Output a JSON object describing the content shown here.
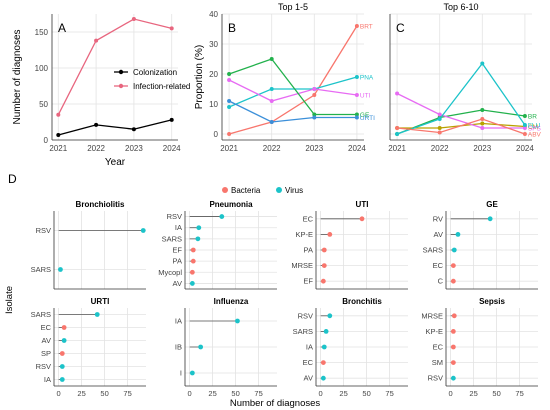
{
  "chart_data": [
    {
      "id": "A",
      "type": "line",
      "panel_label": "A",
      "title": "",
      "xlabel": "Year",
      "ylabel": "Number of diagnoses",
      "x": [
        2021,
        2022,
        2023,
        2024
      ],
      "ylim": [
        0,
        175
      ],
      "yticks": [
        0,
        50,
        100,
        150
      ],
      "grid": true,
      "legend_position": "center-right",
      "series": [
        {
          "name": "Colonization",
          "color": "#000000",
          "values": [
            7,
            21,
            15,
            28
          ]
        },
        {
          "name": "Infection-related",
          "color": "#e8667f",
          "values": [
            35,
            138,
            168,
            155
          ]
        }
      ]
    },
    {
      "id": "B",
      "type": "line",
      "panel_label": "B",
      "title": "Top 1-5",
      "xlabel": "",
      "ylabel": "Proportion (%)",
      "x": [
        2021,
        2022,
        2023,
        2024
      ],
      "ylim": [
        -2,
        40
      ],
      "yticks": [
        0,
        10,
        20,
        30,
        40
      ],
      "grid": true,
      "series": [
        {
          "name": "BRT",
          "color": "#f8766d",
          "values": [
            0,
            4,
            13,
            36
          ]
        },
        {
          "name": "PNA",
          "color": "#1cc3c9",
          "values": [
            9,
            15,
            15,
            19
          ]
        },
        {
          "name": "UTI",
          "color": "#e76bf3",
          "values": [
            18,
            11,
            15,
            13
          ]
        },
        {
          "name": "GE",
          "color": "#22b14c",
          "values": [
            20,
            25,
            6.5,
            6.5
          ]
        },
        {
          "name": "URTI",
          "color": "#3b8fd9",
          "values": [
            11,
            4,
            5.5,
            5.5
          ]
        }
      ]
    },
    {
      "id": "C",
      "type": "line",
      "panel_label": "C",
      "title": "Top 6-10",
      "xlabel": "",
      "ylabel": "",
      "x": [
        2021,
        2022,
        2023,
        2024
      ],
      "ylim": [
        -2,
        40
      ],
      "grid": true,
      "series": [
        {
          "name": "BR",
          "color": "#22b14c",
          "values": [
            0,
            5.5,
            8,
            6
          ]
        },
        {
          "name": "CM",
          "color": "#b9a100",
          "values": [
            2,
            2,
            3.5,
            2.5
          ]
        },
        {
          "name": "SPS",
          "color": "#e76bf3",
          "values": [
            13.5,
            6.5,
            2,
            2
          ]
        },
        {
          "name": "FLU",
          "color": "#1cc3c9",
          "values": [
            0,
            5,
            23.5,
            3
          ]
        },
        {
          "name": "ABV",
          "color": "#f8766d",
          "values": [
            2,
            0.5,
            5,
            0
          ]
        }
      ]
    },
    {
      "id": "D",
      "type": "scatter",
      "subtype": "lollipop",
      "panel_label": "D",
      "title": "",
      "xlabel": "Number of diagnoses",
      "ylabel": "Isolate",
      "xlim": [
        -5,
        95
      ],
      "xticks": [
        0,
        25,
        50,
        75
      ],
      "legend": [
        {
          "name": "Bacteria",
          "color": "#f8766d"
        },
        {
          "name": "Virus",
          "color": "#1cc3c9"
        }
      ],
      "facets": [
        {
          "title": "Bronchiolitis",
          "items": [
            {
              "label": "RSV",
              "value": 92,
              "type": "Virus"
            },
            {
              "label": "SARS",
              "value": 2,
              "type": "Virus"
            }
          ]
        },
        {
          "title": "Pneumonia",
          "items": [
            {
              "label": "RSV",
              "value": 35,
              "type": "Virus"
            },
            {
              "label": "IA",
              "value": 10,
              "type": "Virus"
            },
            {
              "label": "SARS",
              "value": 9,
              "type": "Virus"
            },
            {
              "label": "EF",
              "value": 4,
              "type": "Bacteria"
            },
            {
              "label": "PA",
              "value": 4,
              "type": "Bacteria"
            },
            {
              "label": "Mycopl",
              "value": 3,
              "type": "Bacteria"
            },
            {
              "label": "AV",
              "value": 3,
              "type": "Virus"
            }
          ]
        },
        {
          "title": "UTI",
          "items": [
            {
              "label": "EC",
              "value": 45,
              "type": "Bacteria"
            },
            {
              "label": "KP-E",
              "value": 10,
              "type": "Bacteria"
            },
            {
              "label": "PA",
              "value": 4,
              "type": "Bacteria"
            },
            {
              "label": "MRSE",
              "value": 4,
              "type": "Bacteria"
            },
            {
              "label": "EF",
              "value": 3,
              "type": "Bacteria"
            }
          ]
        },
        {
          "title": "GE",
          "items": [
            {
              "label": "RV",
              "value": 43,
              "type": "Virus"
            },
            {
              "label": "AV",
              "value": 8,
              "type": "Virus"
            },
            {
              "label": "SARS",
              "value": 4,
              "type": "Virus"
            },
            {
              "label": "EC",
              "value": 3,
              "type": "Bacteria"
            },
            {
              "label": "C",
              "value": 3,
              "type": "Bacteria"
            }
          ]
        },
        {
          "title": "URTI",
          "items": [
            {
              "label": "SARS",
              "value": 42,
              "type": "Virus"
            },
            {
              "label": "EC",
              "value": 6,
              "type": "Bacteria"
            },
            {
              "label": "AV",
              "value": 6,
              "type": "Virus"
            },
            {
              "label": "SP",
              "value": 4,
              "type": "Bacteria"
            },
            {
              "label": "RSV",
              "value": 4,
              "type": "Virus"
            },
            {
              "label": "IA",
              "value": 4,
              "type": "Virus"
            }
          ]
        },
        {
          "title": "Influenza",
          "items": [
            {
              "label": "IA",
              "value": 52,
              "type": "Virus"
            },
            {
              "label": "IB",
              "value": 12,
              "type": "Virus"
            },
            {
              "label": "I",
              "value": 3,
              "type": "Virus"
            }
          ]
        },
        {
          "title": "Bronchitis",
          "items": [
            {
              "label": "RSV",
              "value": 10,
              "type": "Virus"
            },
            {
              "label": "SARS",
              "value": 6,
              "type": "Virus"
            },
            {
              "label": "IA",
              "value": 4,
              "type": "Virus"
            },
            {
              "label": "EC",
              "value": 3,
              "type": "Bacteria"
            },
            {
              "label": "AV",
              "value": 3,
              "type": "Virus"
            }
          ]
        },
        {
          "title": "Sepsis",
          "items": [
            {
              "label": "MRSE",
              "value": 4,
              "type": "Bacteria"
            },
            {
              "label": "KP-E",
              "value": 3,
              "type": "Bacteria"
            },
            {
              "label": "EC",
              "value": 3,
              "type": "Bacteria"
            },
            {
              "label": "SM",
              "value": 3,
              "type": "Bacteria"
            },
            {
              "label": "RSV",
              "value": 3,
              "type": "Virus"
            }
          ]
        }
      ]
    }
  ]
}
